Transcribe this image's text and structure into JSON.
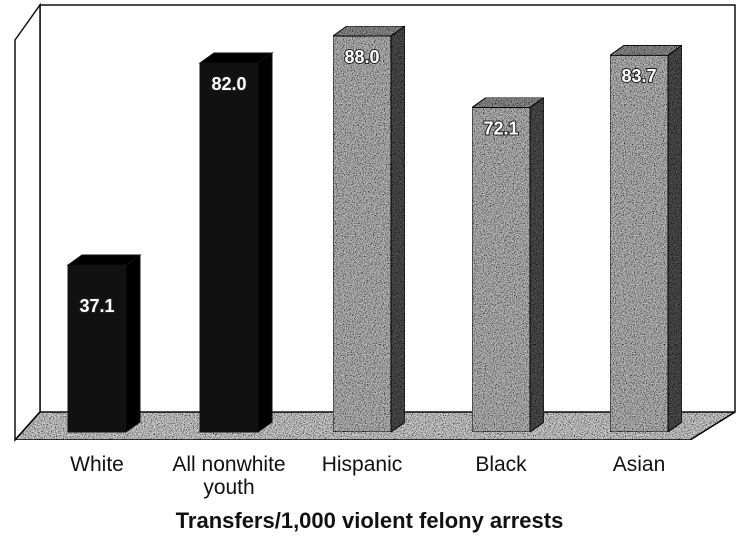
{
  "chart_data": {
    "type": "bar3d",
    "categories": [
      "White",
      "All nonwhite youth",
      "Hispanic",
      "Black",
      "Asian"
    ],
    "values": [
      37.1,
      82.0,
      88.0,
      72.1,
      83.7
    ],
    "value_labels": [
      "37.1",
      "82.0",
      "88.0",
      "72.1",
      "83.7"
    ],
    "colors": [
      "#111111",
      "#111111",
      "#c4c4c4",
      "#c4c4c4",
      "#c4c4c4"
    ],
    "xlabel": "Transfers/1,000 violent felony arrests"
  }
}
